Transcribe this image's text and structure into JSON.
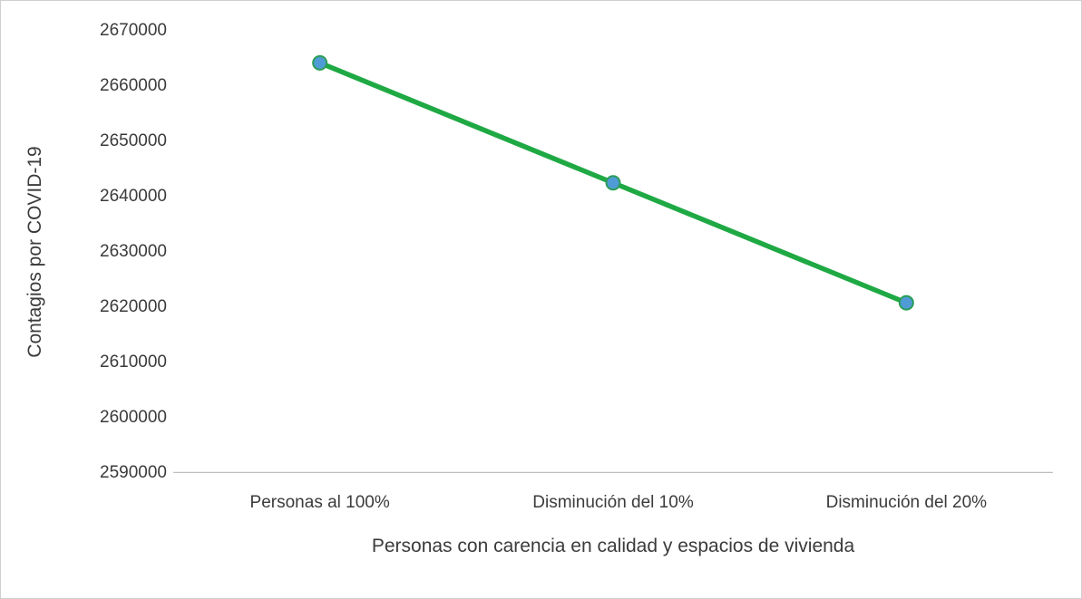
{
  "chart_data": {
    "type": "line",
    "title": "",
    "categories": [
      "Personas al 100%",
      "Disminución del 10%",
      "Disminución del 20%"
    ],
    "series": [
      {
        "name": "Contagios por COVID-19",
        "values": [
          2664200,
          2642500,
          2620800
        ]
      }
    ],
    "xlabel": "Personas con carencia en calidad y espacios de vivienda",
    "ylabel": "Contagios por COVID-19",
    "ylim": [
      2590000,
      2670000
    ],
    "ytick_step": 10000,
    "ytick_labels": [
      "2590000",
      "2600000",
      "2610000",
      "2620000",
      "2630000",
      "2640000",
      "2650000",
      "2660000",
      "2670000"
    ],
    "grid": false,
    "legend": "none",
    "colors": {
      "line": "#1fa944",
      "marker_fill": "#4f9bd5",
      "marker_stroke": "#2a9d57",
      "axis_line": "#bfbfbf",
      "text": "#3b3b3b",
      "frame_border": "#cfcfcf"
    }
  }
}
